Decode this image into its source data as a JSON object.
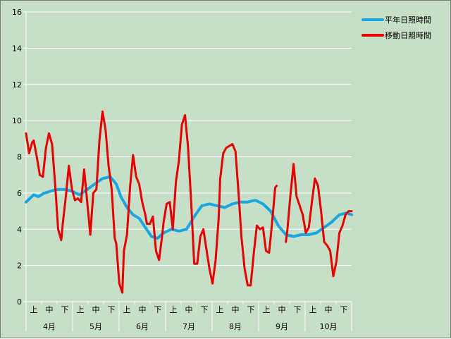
{
  "chart_data": {
    "type": "line",
    "ylim": [
      0,
      16
    ],
    "yticks": [
      "0",
      "2",
      "4",
      "6",
      "8",
      "10",
      "12",
      "14",
      "16"
    ],
    "period_labels": [
      "上",
      "中",
      "下"
    ],
    "months": [
      "4月",
      "5月",
      "6月",
      "7月",
      "8月",
      "9月",
      "10月"
    ],
    "x_unit_note": "day index from 4月1日 (0) to 10月31日 (213)",
    "grid": true,
    "legend_position": "top-right",
    "series": [
      {
        "name": "平年日照時間",
        "color": "#1aa7e1",
        "x": [
          0,
          5,
          8,
          12,
          16,
          20,
          25,
          30,
          35,
          40,
          45,
          50,
          55,
          59,
          62,
          66,
          70,
          74,
          78,
          82,
          86,
          90,
          95,
          100,
          105,
          110,
          115,
          120,
          125,
          130,
          135,
          140,
          145,
          150,
          155,
          160,
          165,
          170,
          175,
          180,
          185,
          190,
          195,
          200,
          205,
          210,
          213
        ],
        "values": [
          5.5,
          5.9,
          5.8,
          6.0,
          6.1,
          6.2,
          6.2,
          6.1,
          5.9,
          6.2,
          6.5,
          6.8,
          6.9,
          6.5,
          5.8,
          5.2,
          4.8,
          4.6,
          4.1,
          3.6,
          3.5,
          3.8,
          4.0,
          3.9,
          4.0,
          4.7,
          5.3,
          5.4,
          5.3,
          5.2,
          5.4,
          5.5,
          5.5,
          5.6,
          5.4,
          5.0,
          4.2,
          3.7,
          3.6,
          3.7,
          3.7,
          3.8,
          4.1,
          4.4,
          4.8,
          4.9,
          4.8
        ]
      },
      {
        "name": "移動日照時間",
        "color": "#e60000",
        "x": [
          0,
          2,
          4,
          5,
          7,
          9,
          11,
          13,
          15,
          17,
          19,
          21,
          23,
          24,
          26,
          28,
          30,
          32,
          34,
          36,
          38,
          40,
          42,
          44,
          46,
          48,
          50,
          52,
          54,
          56,
          58,
          59,
          61,
          63,
          64,
          66,
          68,
          70,
          72,
          74,
          76,
          78,
          79,
          81,
          83,
          85,
          87,
          89,
          90,
          92,
          94,
          96,
          98,
          100,
          102,
          104,
          106,
          108,
          110,
          112,
          114,
          116,
          118,
          120,
          122,
          124,
          126,
          127,
          129,
          131,
          133,
          135,
          137,
          139,
          141,
          143,
          145,
          147,
          149,
          151,
          153,
          155,
          157,
          159,
          161,
          163,
          164,
          166,
          168,
          170,
          171,
          173,
          175,
          177,
          179,
          181,
          183,
          185,
          187,
          189,
          191,
          193,
          195,
          197,
          199,
          201,
          203,
          205,
          207,
          209,
          211,
          213
        ],
        "values": [
          9.3,
          8.2,
          8.8,
          8.9,
          8.0,
          7.0,
          6.9,
          8.5,
          9.3,
          8.7,
          6.5,
          4.0,
          3.4,
          4.3,
          5.8,
          7.5,
          6.2,
          5.6,
          5.7,
          5.5,
          7.3,
          5.5,
          3.7,
          6.0,
          6.2,
          8.9,
          10.5,
          9.5,
          7.5,
          6.2,
          3.5,
          3.2,
          1.0,
          0.5,
          2.8,
          3.7,
          6.3,
          8.1,
          6.9,
          6.5,
          5.5,
          4.8,
          4.3,
          4.3,
          4.7,
          2.8,
          2.3,
          3.6,
          4.4,
          5.4,
          5.5,
          4.0,
          6.6,
          7.8,
          9.8,
          10.3,
          8.5,
          5.5,
          2.1,
          2.1,
          3.6,
          4.0,
          2.9,
          1.8,
          1.0,
          2.3,
          4.6,
          6.8,
          8.2,
          8.5,
          8.6,
          8.7,
          8.3,
          6.0,
          3.5,
          1.8,
          0.9,
          0.9,
          2.7,
          4.2,
          4.0,
          4.1,
          2.8,
          2.7,
          4.4,
          6.3,
          6.4,
          null,
          null,
          3.3,
          4.0,
          5.9,
          7.6,
          5.8,
          5.3,
          4.8,
          3.8,
          4.1,
          5.5,
          6.8,
          6.4,
          5.0,
          3.3,
          3.1,
          2.8,
          1.4,
          2.2,
          3.8,
          4.2,
          4.8,
          5.0,
          5.0
        ]
      }
    ]
  }
}
